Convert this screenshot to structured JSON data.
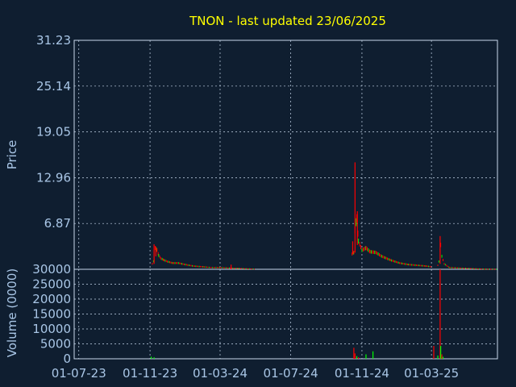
{
  "chart_data": [
    {
      "type": "candlestick",
      "title": "TNON - last updated 23/06/2025",
      "ylabel": "Price",
      "ylim": [
        0.78,
        31.23
      ],
      "yticks": [
        "31.23",
        "25.14",
        "19.05",
        "12.96",
        "6.87"
      ],
      "x_tick_labels": [
        "01-07-23",
        "01-11-23",
        "01-03-24",
        "01-07-24",
        "01-11-24",
        "01-03-25"
      ],
      "xlim": [
        "2023-06-23",
        "2025-06-23"
      ],
      "grid": true,
      "colors": {
        "up": "#00ff00",
        "down": "#ff0000",
        "background": "#0f1e30",
        "frame": "#c8d8ec"
      },
      "series": [
        {
          "points": [
            [
              "2023-11-05",
              1.5
            ],
            [
              "2023-11-08",
              2.0
            ],
            [
              "2023-11-10",
              3.6
            ],
            [
              "2023-11-13",
              3.3
            ],
            [
              "2023-11-16",
              2.6
            ],
            [
              "2023-11-20",
              2.2
            ],
            [
              "2023-11-25",
              2.0
            ],
            [
              "2023-12-01",
              1.8
            ],
            [
              "2023-12-10",
              1.6
            ],
            [
              "2023-12-20",
              1.6
            ],
            [
              "2024-01-01",
              1.4
            ],
            [
              "2024-01-15",
              1.2
            ],
            [
              "2024-02-01",
              1.1
            ],
            [
              "2024-02-15",
              1.0
            ],
            [
              "2024-03-01",
              1.0
            ],
            [
              "2024-03-15",
              0.95
            ],
            [
              "2024-04-01",
              0.9
            ],
            [
              "2024-04-15",
              0.85
            ],
            [
              "2024-05-01",
              0.8
            ]
          ],
          "spikes": [
            [
              "2023-11-08",
              1.5,
              4.1
            ],
            [
              "2023-11-11",
              2.5,
              3.8
            ],
            [
              "2024-03-20",
              0.8,
              1.4
            ]
          ]
        },
        {
          "points": [
            [
              "2024-10-15",
              2.8
            ],
            [
              "2024-10-18",
              3.0
            ],
            [
              "2024-10-20",
              6.0
            ],
            [
              "2024-10-23",
              7.5
            ],
            [
              "2024-10-26",
              4.5
            ],
            [
              "2024-11-01",
              3.3
            ],
            [
              "2024-11-08",
              3.6
            ],
            [
              "2024-11-15",
              3.1
            ],
            [
              "2024-11-25",
              3.0
            ],
            [
              "2024-12-05",
              2.5
            ],
            [
              "2024-12-20",
              2.0
            ],
            [
              "2025-01-05",
              1.6
            ],
            [
              "2025-01-20",
              1.4
            ],
            [
              "2025-02-05",
              1.3
            ],
            [
              "2025-02-20",
              1.2
            ],
            [
              "2025-03-01",
              1.1
            ]
          ],
          "spikes": [
            [
              "2024-10-20",
              3.0,
              15.0
            ],
            [
              "2024-10-24",
              4.0,
              8.5
            ],
            [
              "2024-10-16",
              2.8,
              4.5
            ]
          ]
        },
        {
          "points": [
            [
              "2025-03-12",
              1.3
            ],
            [
              "2025-03-14",
              1.8
            ],
            [
              "2025-03-17",
              4.0
            ],
            [
              "2025-03-19",
              2.5
            ],
            [
              "2025-03-23",
              1.5
            ],
            [
              "2025-04-01",
              1.0
            ],
            [
              "2025-04-15",
              0.95
            ],
            [
              "2025-05-01",
              0.9
            ],
            [
              "2025-05-15",
              0.85
            ],
            [
              "2025-06-01",
              0.8
            ],
            [
              "2025-06-22",
              0.78
            ]
          ],
          "spikes": [
            [
              "2025-03-16",
              1.5,
              5.2
            ]
          ]
        }
      ]
    },
    {
      "type": "bar",
      "ylabel": "Volume (0000)",
      "ylim": [
        0,
        30000
      ],
      "yticks": [
        "30000",
        "25000",
        "20000",
        "15000",
        "10000",
        "5000",
        "0"
      ],
      "x_tick_labels": [
        "01-07-23",
        "01-11-23",
        "01-03-24",
        "01-07-24",
        "01-11-24",
        "01-03-25"
      ],
      "bars": [
        [
          "2023-11-03",
          700,
          "up"
        ],
        [
          "2023-11-08",
          500,
          "up"
        ],
        [
          "2024-10-18",
          3700,
          "down"
        ],
        [
          "2024-10-20",
          1800,
          "down"
        ],
        [
          "2024-10-23",
          900,
          "up"
        ],
        [
          "2024-10-26",
          500,
          "down"
        ],
        [
          "2024-11-08",
          1500,
          "up"
        ],
        [
          "2024-11-20",
          2500,
          "up"
        ],
        [
          "2025-03-05",
          4300,
          "down"
        ],
        [
          "2025-03-12",
          1100,
          "up"
        ],
        [
          "2025-03-16",
          30000,
          "down"
        ],
        [
          "2025-03-17",
          4300,
          "up"
        ],
        [
          "2025-03-19",
          1500,
          "down"
        ],
        [
          "2025-03-21",
          700,
          "up"
        ]
      ]
    }
  ]
}
